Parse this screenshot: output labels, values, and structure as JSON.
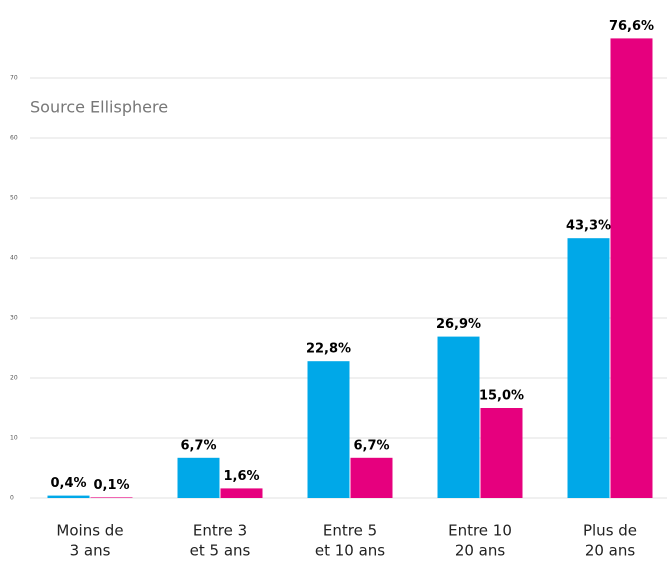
{
  "chart_data": {
    "type": "bar",
    "annotation": "Source Ellisphere",
    "categories": [
      [
        "Moins de",
        "3 ans"
      ],
      [
        "Entre 3",
        "et 5 ans"
      ],
      [
        "Entre 5",
        "et 10 ans"
      ],
      [
        "Entre 10",
        "20 ans"
      ],
      [
        "Plus de",
        "20 ans"
      ]
    ],
    "series": [
      {
        "color": "#00a8e8",
        "values": [
          0.4,
          6.7,
          22.8,
          26.9,
          43.3
        ],
        "value_labels": [
          "0,4%",
          "6,7%",
          "22,8%",
          "26,9%",
          "43,3%"
        ]
      },
      {
        "color": "#e6007e",
        "values": [
          0.1,
          1.6,
          6.7,
          15.0,
          76.6
        ],
        "value_labels": [
          "0,1%",
          "1,6%",
          "6,7%",
          "15,0%",
          "76,6%"
        ]
      }
    ],
    "ylim": [
      0,
      80
    ],
    "yticks": [
      0,
      10,
      20,
      30,
      40,
      50,
      60,
      70
    ],
    "grid": true
  }
}
